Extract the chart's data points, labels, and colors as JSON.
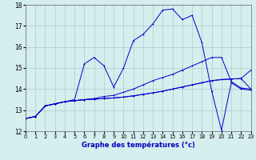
{
  "xlabel": "Graphe des températures (°c)",
  "background_color": "#d5eeee",
  "grid_color": "#aacccc",
  "xlim": [
    0,
    23
  ],
  "ylim": [
    12,
    18
  ],
  "yticks": [
    12,
    13,
    14,
    15,
    16,
    17,
    18
  ],
  "xticks": [
    0,
    1,
    2,
    3,
    4,
    5,
    6,
    7,
    8,
    9,
    10,
    11,
    12,
    13,
    14,
    15,
    16,
    17,
    18,
    19,
    20,
    21,
    22,
    23
  ],
  "series": [
    {
      "x": [
        0,
        1,
        2,
        3,
        4,
        5,
        6,
        7,
        8,
        9,
        10,
        11,
        12,
        13,
        14,
        15,
        16,
        17,
        18,
        19,
        20,
        21,
        22,
        23
      ],
      "y": [
        12.6,
        12.7,
        13.2,
        13.3,
        13.4,
        13.5,
        15.2,
        15.5,
        15.1,
        14.1,
        15.0,
        16.3,
        16.6,
        17.1,
        17.75,
        17.8,
        17.3,
        17.5,
        16.2,
        13.9,
        12.05,
        14.3,
        14.0,
        13.95
      ]
    },
    {
      "x": [
        0,
        1,
        2,
        3,
        4,
        5,
        6,
        7,
        8,
        9,
        10,
        11,
        12,
        13,
        14,
        15,
        16,
        17,
        18,
        19,
        20,
        21,
        22,
        23
      ],
      "y": [
        12.6,
        12.7,
        13.2,
        13.3,
        13.4,
        13.45,
        13.5,
        13.55,
        13.65,
        13.7,
        13.85,
        14.0,
        14.2,
        14.4,
        14.55,
        14.7,
        14.9,
        15.1,
        15.3,
        15.5,
        15.5,
        14.35,
        14.05,
        14.0
      ]
    },
    {
      "x": [
        0,
        1,
        2,
        3,
        4,
        5,
        6,
        7,
        8,
        9,
        10,
        11,
        12,
        13,
        14,
        15,
        16,
        17,
        18,
        19,
        20,
        21,
        22,
        23
      ],
      "y": [
        12.6,
        12.7,
        13.2,
        13.3,
        13.4,
        13.45,
        13.5,
        13.52,
        13.55,
        13.58,
        13.62,
        13.68,
        13.75,
        13.82,
        13.9,
        14.0,
        14.1,
        14.2,
        14.3,
        14.4,
        14.45,
        14.48,
        14.5,
        14.0
      ]
    },
    {
      "x": [
        0,
        1,
        2,
        3,
        4,
        5,
        6,
        7,
        8,
        9,
        10,
        11,
        12,
        13,
        14,
        15,
        16,
        17,
        18,
        19,
        20,
        21,
        22,
        23
      ],
      "y": [
        12.6,
        12.7,
        13.2,
        13.3,
        13.4,
        13.45,
        13.5,
        13.52,
        13.55,
        13.58,
        13.62,
        13.68,
        13.75,
        13.82,
        13.9,
        14.0,
        14.1,
        14.2,
        14.3,
        14.4,
        14.45,
        14.48,
        14.5,
        14.9
      ]
    }
  ]
}
